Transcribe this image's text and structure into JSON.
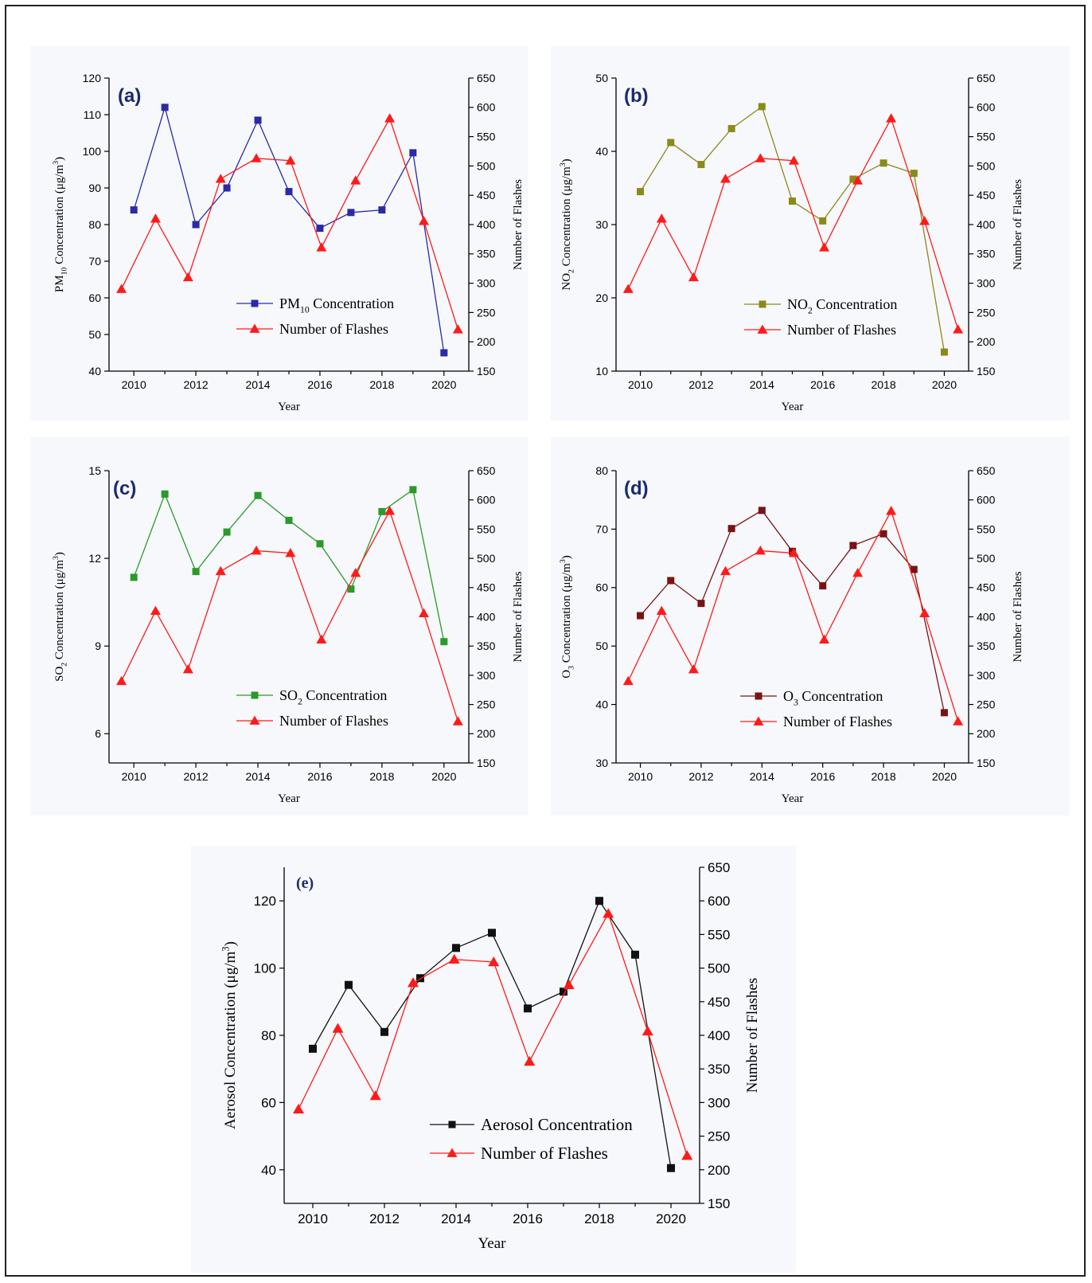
{
  "chart_data": [
    {
      "type": "line",
      "panel_label": "(a)",
      "xlabel": "Year",
      "ylabel_left": {
        "pre": "PM",
        "sub": "10",
        "post": " Concentration (μg/m",
        "sup": "3",
        "end": ")"
      },
      "ylabel_right": "Number of Flashes",
      "x_ticks": [
        "2010",
        "2012",
        "2014",
        "2016",
        "2018",
        "2020"
      ],
      "y_left_lim": [
        40,
        120
      ],
      "y_left_ticks": [
        40,
        50,
        60,
        70,
        80,
        90,
        100,
        110,
        120
      ],
      "y_right_lim": [
        150,
        650
      ],
      "y_right_ticks": [
        150,
        200,
        250,
        300,
        350,
        400,
        450,
        500,
        550,
        600,
        650
      ],
      "legend": [
        {
          "pre": "PM",
          "sub": "10",
          "post": " Concentration"
        },
        {
          "pre": "Number of Flashes",
          "sub": "",
          "post": ""
        }
      ],
      "series": [
        {
          "name": "PM10 Concentration",
          "axis": "left",
          "marker": "square",
          "color": "#2a2aa8",
          "x": [
            2010,
            2011,
            2012,
            2013,
            2014,
            2015,
            2016,
            2017,
            2018,
            2019,
            2020
          ],
          "y": [
            84,
            112,
            80,
            90,
            108.5,
            89,
            79,
            83.3,
            84,
            99.6,
            45
          ]
        },
        {
          "name": "Number of Flashes",
          "axis": "right",
          "marker": "triangle",
          "color": "#ff1a1a",
          "x": [
            2009.6,
            2010.7,
            2011.75,
            2012.8,
            2013.95,
            2015.05,
            2016.05,
            2017.15,
            2018.25,
            2019.35,
            2020.45
          ],
          "y": [
            290,
            410,
            310,
            478,
            513,
            509,
            361,
            475,
            581,
            406,
            221
          ]
        }
      ]
    },
    {
      "type": "line",
      "panel_label": "(b)",
      "xlabel": "Year",
      "ylabel_left": {
        "pre": "NO",
        "sub": "2",
        "post": " Concentration (μg/m",
        "sup": "3",
        "end": ")"
      },
      "ylabel_right": "Number of Flashes",
      "x_ticks": [
        "2010",
        "2012",
        "2014",
        "2016",
        "2018",
        "2020"
      ],
      "y_left_lim": [
        10,
        50
      ],
      "y_left_ticks": [
        10,
        20,
        30,
        40,
        50
      ],
      "y_right_lim": [
        150,
        650
      ],
      "y_right_ticks": [
        150,
        200,
        250,
        300,
        350,
        400,
        450,
        500,
        550,
        600,
        650
      ],
      "legend": [
        {
          "pre": "NO",
          "sub": "2",
          "post": " Concentration"
        },
        {
          "pre": "Number of Flashes",
          "sub": "",
          "post": ""
        }
      ],
      "series": [
        {
          "name": "NO2 Concentration",
          "axis": "left",
          "marker": "square",
          "color": "#8a8a1a",
          "x": [
            2010,
            2011,
            2012,
            2013,
            2014,
            2015,
            2016,
            2017,
            2018,
            2019,
            2020
          ],
          "y": [
            34.5,
            41.2,
            38.2,
            43.1,
            46.1,
            33.2,
            30.5,
            36.2,
            38.4,
            37,
            12.6
          ]
        },
        {
          "name": "Number of Flashes",
          "axis": "right",
          "marker": "triangle",
          "color": "#ff1a1a",
          "x": [
            2009.6,
            2010.7,
            2011.75,
            2012.8,
            2013.95,
            2015.05,
            2016.05,
            2017.15,
            2018.25,
            2019.35,
            2020.45
          ],
          "y": [
            290,
            410,
            310,
            478,
            513,
            509,
            361,
            475,
            581,
            406,
            221
          ]
        }
      ]
    },
    {
      "type": "line",
      "panel_label": "(c)",
      "xlabel": "Year",
      "ylabel_left": {
        "pre": "SO",
        "sub": "2",
        "post": " Concentration (μg/m",
        "sup": "3",
        "end": ")"
      },
      "ylabel_right": "Number of Flashes",
      "x_ticks": [
        "2010",
        "2012",
        "2014",
        "2016",
        "2018",
        "2020"
      ],
      "y_left_lim": [
        5,
        15
      ],
      "y_left_ticks": [
        6,
        9,
        12,
        15
      ],
      "y_right_lim": [
        150,
        650
      ],
      "y_right_ticks": [
        150,
        200,
        250,
        300,
        350,
        400,
        450,
        500,
        550,
        600,
        650
      ],
      "legend": [
        {
          "pre": "SO",
          "sub": "2",
          "post": " Concentration"
        },
        {
          "pre": "Number of Flashes",
          "sub": "",
          "post": ""
        }
      ],
      "series": [
        {
          "name": "SO2 Concentration",
          "axis": "left",
          "marker": "square",
          "color": "#2a9a2a",
          "x": [
            2010,
            2011,
            2012,
            2013,
            2014,
            2015,
            2016,
            2017,
            2018,
            2019,
            2020
          ],
          "y": [
            11.35,
            14.2,
            11.55,
            12.9,
            14.15,
            13.3,
            12.5,
            10.95,
            13.6,
            14.35,
            9.15
          ]
        },
        {
          "name": "Number of Flashes",
          "axis": "right",
          "marker": "triangle",
          "color": "#ff1a1a",
          "x": [
            2009.6,
            2010.7,
            2011.75,
            2012.8,
            2013.95,
            2015.05,
            2016.05,
            2017.15,
            2018.25,
            2019.35,
            2020.45
          ],
          "y": [
            290,
            410,
            310,
            478,
            513,
            509,
            361,
            475,
            581,
            406,
            221
          ]
        }
      ]
    },
    {
      "type": "line",
      "panel_label": "(d)",
      "xlabel": "Year",
      "ylabel_left": {
        "pre": "O",
        "sub": "3",
        "post": " Concentration (μg/m",
        "sup": "3",
        "end": ")"
      },
      "ylabel_right": "Number of Flashes",
      "x_ticks": [
        "2010",
        "2012",
        "2014",
        "2016",
        "2018",
        "2020"
      ],
      "y_left_lim": [
        30,
        80
      ],
      "y_left_ticks": [
        30,
        40,
        50,
        60,
        70,
        80
      ],
      "y_right_lim": [
        150,
        650
      ],
      "y_right_ticks": [
        150,
        200,
        250,
        300,
        350,
        400,
        450,
        500,
        550,
        600,
        650
      ],
      "legend": [
        {
          "pre": "O",
          "sub": "3",
          "post": " Concentration"
        },
        {
          "pre": "Number of Flashes",
          "sub": "",
          "post": ""
        }
      ],
      "series": [
        {
          "name": "O3 Concentration",
          "axis": "left",
          "marker": "square",
          "color": "#7a1414",
          "x": [
            2010,
            2011,
            2012,
            2013,
            2014,
            2015,
            2016,
            2017,
            2018,
            2019,
            2020
          ],
          "y": [
            55.2,
            61.2,
            57.3,
            70.1,
            73.2,
            66.2,
            60.3,
            67.2,
            69.2,
            63.1,
            38.6
          ]
        },
        {
          "name": "Number of Flashes",
          "axis": "right",
          "marker": "triangle",
          "color": "#ff1a1a",
          "x": [
            2009.6,
            2010.7,
            2011.75,
            2012.8,
            2013.95,
            2015.05,
            2016.05,
            2017.15,
            2018.25,
            2019.35,
            2020.45
          ],
          "y": [
            290,
            410,
            310,
            478,
            513,
            509,
            361,
            475,
            581,
            406,
            221
          ]
        }
      ]
    },
    {
      "type": "line",
      "panel_label": "(e)",
      "xlabel": "Year",
      "ylabel_left": {
        "pre": "Aerosol Concentration (μg/m",
        "sub": "",
        "post": "",
        "sup": "3",
        "end": ")"
      },
      "ylabel_right": "Number of Flashes",
      "x_ticks": [
        "2010",
        "2012",
        "2014",
        "2016",
        "2018",
        "2020"
      ],
      "y_left_lim": [
        30,
        130
      ],
      "y_left_ticks": [
        40,
        60,
        80,
        100,
        120
      ],
      "y_right_lim": [
        150,
        650
      ],
      "y_right_ticks": [
        150,
        200,
        250,
        300,
        350,
        400,
        450,
        500,
        550,
        600,
        650
      ],
      "legend": [
        {
          "pre": "Aerosol Concentration",
          "sub": "",
          "post": ""
        },
        {
          "pre": "Number of Flashes",
          "sub": "",
          "post": ""
        }
      ],
      "series": [
        {
          "name": "Aerosol Concentration",
          "axis": "left",
          "marker": "square",
          "color": "#111111",
          "x": [
            2010,
            2011,
            2012,
            2013,
            2014,
            2015,
            2016,
            2017,
            2018,
            2019,
            2020
          ],
          "y": [
            76,
            95,
            81,
            97,
            106,
            110.5,
            88,
            93,
            120,
            104,
            40.5
          ]
        },
        {
          "name": "Number of Flashes",
          "axis": "right",
          "marker": "triangle",
          "color": "#ff1a1a",
          "x": [
            2009.6,
            2010.7,
            2011.75,
            2012.8,
            2013.95,
            2015.05,
            2016.05,
            2017.15,
            2018.25,
            2019.35,
            2020.45
          ],
          "y": [
            290,
            410,
            310,
            478,
            513,
            509,
            361,
            475,
            581,
            406,
            221
          ]
        }
      ]
    }
  ]
}
